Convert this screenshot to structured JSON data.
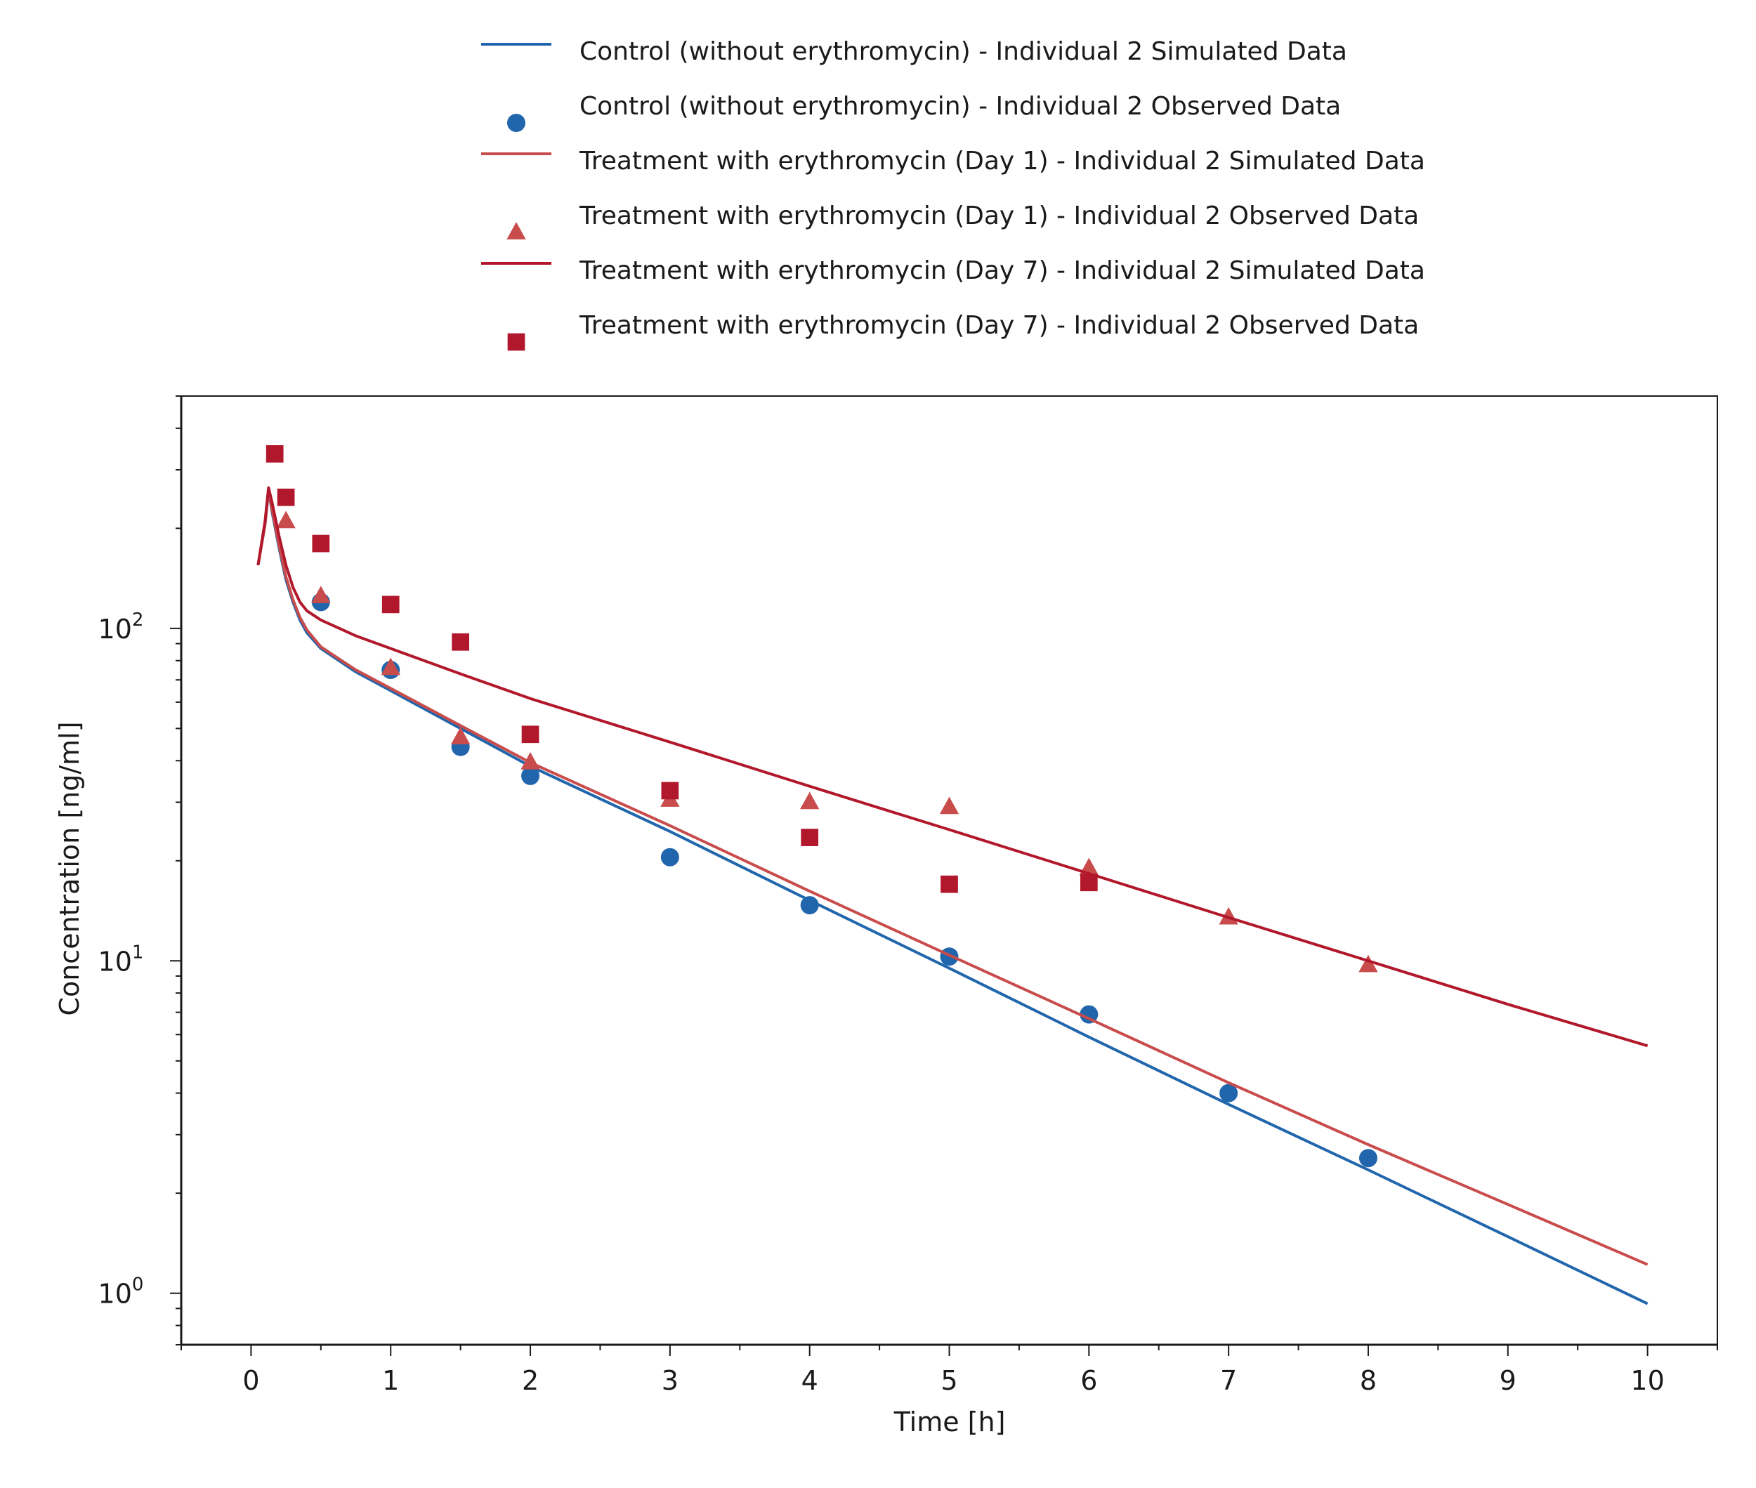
{
  "chart_data": {
    "type": "scatter",
    "title": "",
    "xlabel": "Time [h]",
    "ylabel": "Concentration [ng/ml]",
    "xlim": [
      -0.5,
      10.5
    ],
    "ylim": [
      0.7,
      500
    ],
    "y_scale": "log",
    "grid": false,
    "legend_position": "top",
    "x_ticks": [
      "0",
      "1",
      "2",
      "3",
      "4",
      "5",
      "6",
      "7",
      "8",
      "9",
      "10"
    ],
    "y_ticks": [
      {
        "base": "10",
        "exp": "0",
        "value": 1
      },
      {
        "base": "10",
        "exp": "1",
        "value": 10
      },
      {
        "base": "10",
        "exp": "2",
        "value": 100
      }
    ],
    "series": [
      {
        "name": "Control (without erythromycin) - Individual 2 Simulated Data",
        "kind": "line",
        "color": "#2166ac",
        "x": [
          0.05,
          0.1,
          0.125,
          0.15,
          0.2,
          0.25,
          0.3,
          0.35,
          0.4,
          0.5,
          0.75,
          1,
          1.5,
          2,
          3,
          4,
          5,
          6,
          7,
          8,
          9,
          10
        ],
        "y": [
          155,
          205,
          260,
          225,
          175,
          140,
          120,
          106,
          97,
          87,
          74,
          65,
          50,
          38.5,
          24.5,
          15.2,
          9.5,
          5.9,
          3.7,
          2.35,
          1.48,
          0.93
        ]
      },
      {
        "name": "Control (without erythromycin) - Individual 2 Observed Data",
        "kind": "scatter",
        "marker": "circle",
        "color": "#2166ac",
        "x": [
          0.5,
          1,
          1.5,
          2,
          3,
          4,
          5,
          6,
          7,
          8
        ],
        "y": [
          120,
          75,
          44,
          36,
          20.5,
          14.7,
          10.3,
          6.9,
          4.0,
          2.55
        ]
      },
      {
        "name": "Treatment with erythromycin (Day 1) - Individual 2 Simulated Data",
        "kind": "line",
        "color": "#c94c4c",
        "x": [
          0.05,
          0.1,
          0.125,
          0.15,
          0.2,
          0.25,
          0.3,
          0.35,
          0.4,
          0.5,
          0.75,
          1,
          1.5,
          2,
          3,
          4,
          5,
          6,
          7,
          8,
          9,
          10
        ],
        "y": [
          155,
          205,
          260,
          228,
          178,
          143,
          122,
          108,
          99,
          88,
          75,
          66,
          51,
          39.5,
          25.5,
          16.2,
          10.4,
          6.7,
          4.3,
          2.8,
          1.85,
          1.22
        ]
      },
      {
        "name": "Treatment with erythromycin (Day 1) - Individual 2 Observed Data",
        "kind": "scatter",
        "marker": "triangle",
        "color": "#c94c4c",
        "x": [
          0.25,
          0.5,
          1,
          1.5,
          2,
          3,
          4,
          5,
          6,
          7,
          8
        ],
        "y": [
          210,
          125,
          76,
          47,
          39.5,
          30.5,
          30,
          29,
          19,
          13.5,
          9.7
        ]
      },
      {
        "name": "Treatment with erythromycin (Day 7) - Individual 2 Simulated Data",
        "kind": "line",
        "color": "#b2182b",
        "x": [
          0.05,
          0.1,
          0.125,
          0.15,
          0.2,
          0.25,
          0.3,
          0.35,
          0.4,
          0.5,
          0.75,
          1,
          1.5,
          2,
          3,
          4,
          5,
          6,
          7,
          8,
          9,
          10
        ],
        "y": [
          155,
          210,
          265,
          240,
          190,
          155,
          133,
          120,
          113,
          106,
          95,
          87,
          73,
          61.5,
          45.5,
          33.5,
          24.8,
          18.3,
          13.5,
          10.0,
          7.4,
          5.55
        ]
      },
      {
        "name": "Treatment with erythromycin (Day 7) - Individual 2 Observed Data",
        "kind": "scatter",
        "marker": "square",
        "color": "#b2182b",
        "x": [
          0.17,
          0.25,
          0.5,
          1,
          1.5,
          2,
          3,
          4,
          5,
          6
        ],
        "y": [
          335,
          248,
          180,
          118,
          91,
          48,
          32.5,
          23.5,
          17,
          17.2
        ]
      }
    ]
  }
}
